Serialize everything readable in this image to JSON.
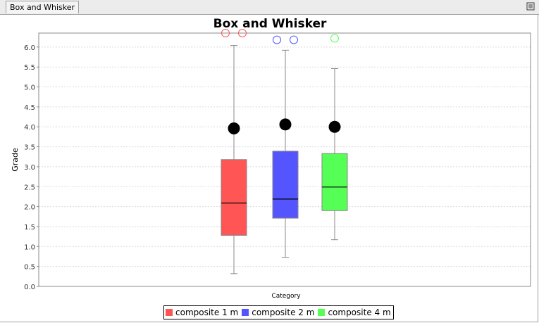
{
  "window": {
    "tab_label": "Box and Whisker",
    "menu_icon": "list-menu-icon"
  },
  "chart_data": {
    "type": "boxplot",
    "title": "Box and Whisker",
    "xlabel": "Category",
    "ylabel": "Grade",
    "ylim": [
      0,
      6.35
    ],
    "yticks": [
      "0.0",
      "0.5",
      "1.0",
      "1.5",
      "2.0",
      "2.5",
      "3.0",
      "3.5",
      "4.0",
      "4.5",
      "5.0",
      "5.5",
      "6.0"
    ],
    "grid": true,
    "legend_position": "bottom",
    "series": [
      {
        "name": "composite 1 m",
        "color": "#ff5555",
        "whisker_low": 0.32,
        "q1": 1.28,
        "median": 2.09,
        "q3": 3.18,
        "whisker_high": 6.04,
        "mean": 3.96,
        "outliers": [
          6.35,
          6.35
        ]
      },
      {
        "name": "composite 2 m",
        "color": "#5555ff",
        "whisker_low": 0.73,
        "q1": 1.71,
        "median": 2.19,
        "q3": 3.39,
        "whisker_high": 5.92,
        "mean": 4.06,
        "outliers": [
          6.18,
          6.18
        ]
      },
      {
        "name": "composite 4 m",
        "color": "#55ff55",
        "whisker_low": 1.17,
        "q1": 1.9,
        "median": 2.49,
        "q3": 3.33,
        "whisker_high": 5.46,
        "mean": 4.0,
        "outliers": [
          6.22
        ]
      }
    ]
  }
}
